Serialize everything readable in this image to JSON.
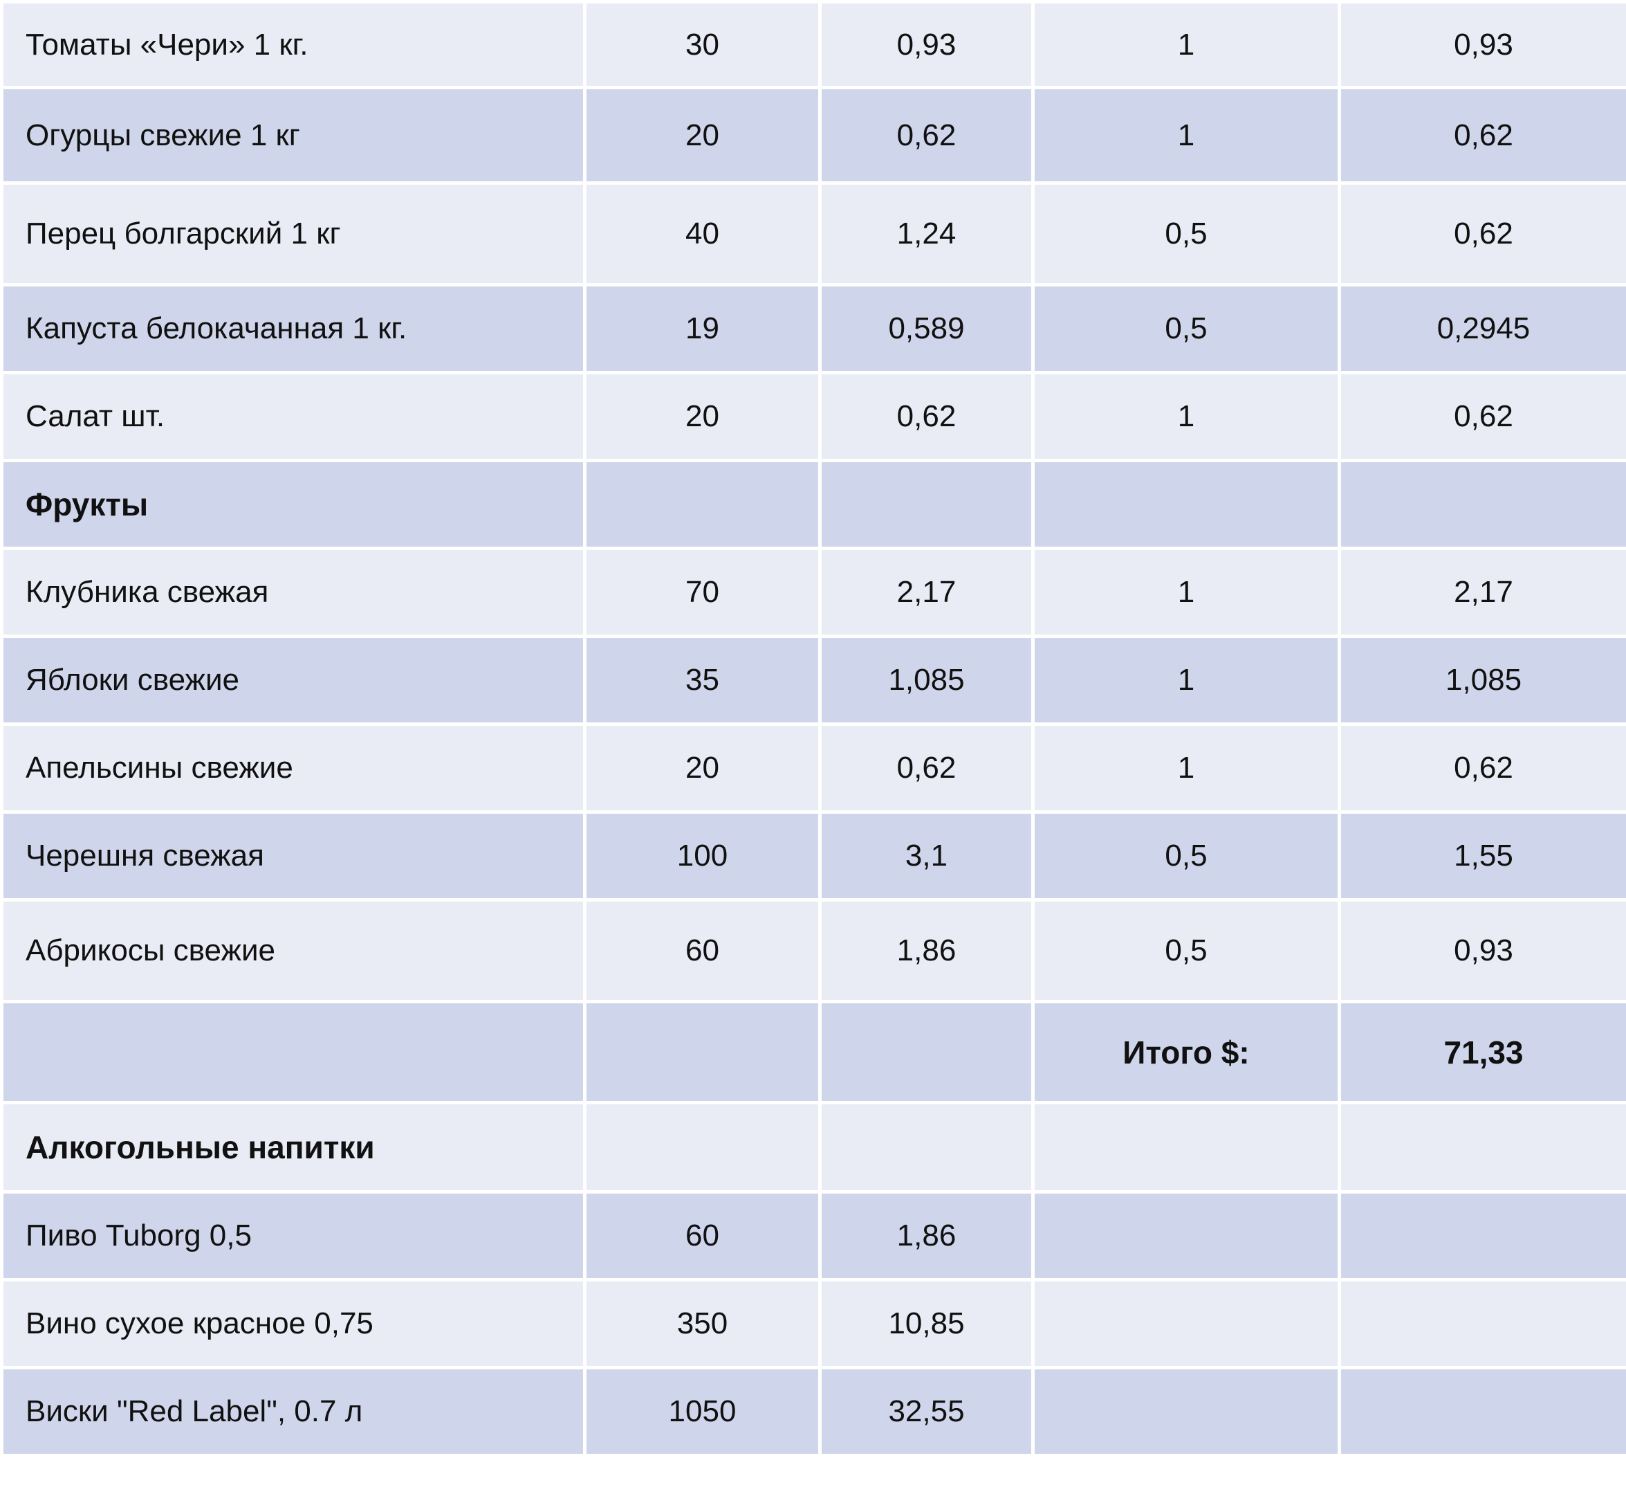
{
  "colors": {
    "row_light": "#e9ebf5",
    "row_dark": "#cfd5ea",
    "grid": "#ffffff",
    "text": "#111111"
  },
  "rows": [
    {
      "kind": "item",
      "shade": "light",
      "cells": [
        "Томаты «Чери» 1 кг.",
        "30",
        "0,93",
        "1",
        "0,93"
      ]
    },
    {
      "kind": "item",
      "shade": "dark",
      "cells": [
        "Огурцы свежие 1 кг",
        "20",
        "0,62",
        "1",
        "0,62"
      ]
    },
    {
      "kind": "item",
      "shade": "light",
      "cells": [
        "Перец болгарский 1 кг",
        "40",
        "1,24",
        "0,5",
        "0,62"
      ]
    },
    {
      "kind": "item",
      "shade": "dark",
      "cells": [
        "Капуста белокачанная 1 кг.",
        "19",
        "0,589",
        "0,5",
        "0,2945"
      ]
    },
    {
      "kind": "item",
      "shade": "light",
      "cells": [
        "Салат шт.",
        "20",
        "0,62",
        "1",
        "0,62"
      ]
    },
    {
      "kind": "section",
      "shade": "dark",
      "cells": [
        "Фрукты",
        "",
        "",
        "",
        ""
      ]
    },
    {
      "kind": "item",
      "shade": "light",
      "cells": [
        "Клубника свежая",
        "70",
        "2,17",
        "1",
        "2,17"
      ]
    },
    {
      "kind": "item",
      "shade": "dark",
      "cells": [
        "Яблоки свежие",
        "35",
        "1,085",
        "1",
        "1,085"
      ]
    },
    {
      "kind": "item",
      "shade": "light",
      "cells": [
        "Апельсины свежие",
        "20",
        "0,62",
        "1",
        "0,62"
      ]
    },
    {
      "kind": "item",
      "shade": "dark",
      "cells": [
        "Черешня свежая",
        "100",
        "3,1",
        "0,5",
        "1,55"
      ]
    },
    {
      "kind": "item",
      "shade": "light",
      "cells": [
        "Абрикосы свежие",
        "60",
        "1,86",
        "0,5",
        "0,93"
      ]
    },
    {
      "kind": "total",
      "shade": "dark",
      "cells": [
        "",
        "",
        "",
        "Итого $:",
        "71,33"
      ]
    },
    {
      "kind": "section",
      "shade": "light",
      "cells": [
        "Алкогольные напитки",
        "",
        "",
        "",
        ""
      ]
    },
    {
      "kind": "item",
      "shade": "dark",
      "cells": [
        "Пиво Tuborg 0,5",
        "60",
        "1,86",
        "",
        ""
      ]
    },
    {
      "kind": "item",
      "shade": "light",
      "cells": [
        "Вино сухое красное 0,75",
        "350",
        "10,85",
        "",
        ""
      ]
    },
    {
      "kind": "item",
      "shade": "dark",
      "cells": [
        "Виски \"Red Label\", 0.7 л",
        "1050",
        "32,55",
        "",
        ""
      ]
    }
  ]
}
